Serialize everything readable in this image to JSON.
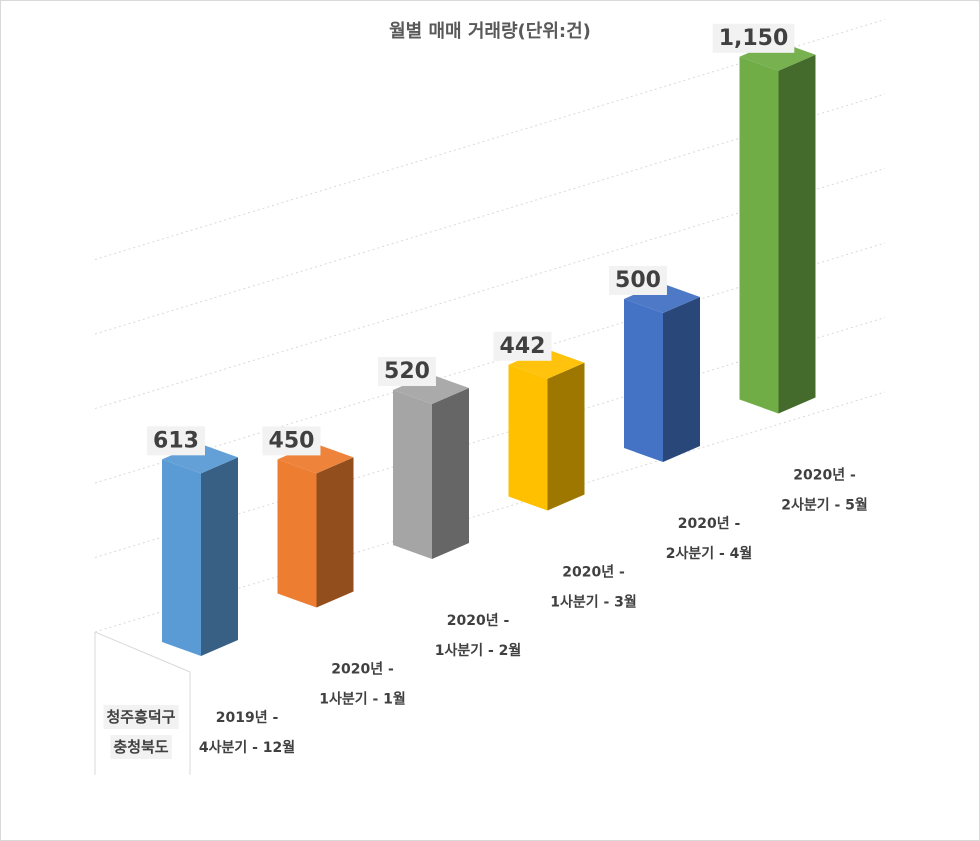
{
  "chart_data": {
    "type": "bar",
    "title": "월별 매매 거래량(단위:건)",
    "category_group": [
      "청주흥덕구",
      "충청북도"
    ],
    "categories": [
      [
        "2019년 -",
        "4사분기 - 12월"
      ],
      [
        "2020년 -",
        "1사분기 - 1월"
      ],
      [
        "2020년 -",
        "1사분기 - 2월"
      ],
      [
        "2020년 -",
        "1사분기 - 3월"
      ],
      [
        "2020년 -",
        "2사분기 - 4월"
      ],
      [
        "2020년 -",
        "2사분기 - 5월"
      ]
    ],
    "values": [
      613,
      450,
      520,
      442,
      500,
      1150
    ],
    "value_labels": [
      "613",
      "450",
      "520",
      "442",
      "500",
      "1,150"
    ],
    "colors": [
      "#5b9bd5",
      "#ed7d31",
      "#a5a5a5",
      "#ffc000",
      "#4472c4",
      "#70ad47"
    ],
    "ylim": [
      0,
      1300
    ],
    "grid": true,
    "legend": "none"
  }
}
